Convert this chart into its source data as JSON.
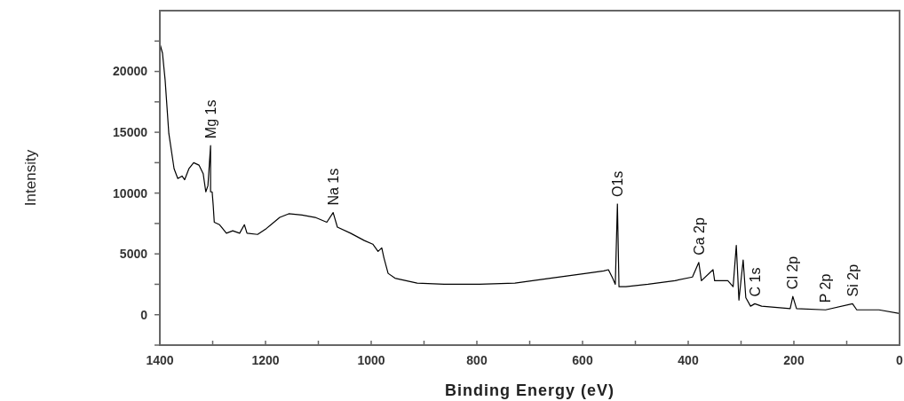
{
  "chart_data": {
    "type": "line",
    "xlabel": "Binding Energy (eV)",
    "ylabel": "Intensity",
    "xlim": [
      1400,
      0
    ],
    "ylim": [
      -2500,
      25000
    ],
    "xticks": [
      1400,
      {
        "value": 1300,
        "label": null
      },
      1200,
      {
        "value": 1100,
        "label": null
      },
      1000,
      {
        "value": 900,
        "label": null
      },
      800,
      {
        "value": 700,
        "label": null
      },
      600,
      {
        "value": 500,
        "label": null
      },
      400,
      {
        "value": 300,
        "label": null
      },
      200,
      {
        "value": 100,
        "label": null
      },
      0
    ],
    "yticks": [
      {
        "value": -2500,
        "label": null
      },
      0,
      {
        "value": 2500,
        "label": null
      },
      5000,
      {
        "value": 7500,
        "label": null
      },
      10000,
      {
        "value": 12500,
        "label": null
      },
      15000,
      {
        "value": 17500,
        "label": null
      },
      20000,
      {
        "value": 22500,
        "label": null
      }
    ],
    "grid": false,
    "marker": "none",
    "line_style": "solid",
    "series": [
      {
        "color": "#000000",
        "x": [
          1400,
          1395,
          1390,
          1383,
          1373,
          1366,
          1358,
          1353,
          1345,
          1336,
          1326,
          1318,
          1313,
          1309,
          1304,
          1304,
          1301,
          1299,
          1297,
          1287,
          1274,
          1262,
          1249,
          1240,
          1235,
          1215,
          1198,
          1173,
          1156,
          1131,
          1106,
          1084,
          1072,
          1064,
          1039,
          1013,
          997,
          987,
          980,
          976,
          968,
          955,
          913,
          862,
          795,
          728,
          661,
          593,
          560,
          551,
          543,
          538,
          534,
          531,
          518,
          476,
          425,
          392,
          380,
          375,
          353,
          350,
          325,
          315,
          309,
          304,
          296,
          291,
          282,
          274,
          261,
          207,
          202,
          195,
          140,
          89,
          81,
          39,
          0
        ],
        "values": [
          22300,
          21500,
          19300,
          14900,
          12000,
          11200,
          11400,
          11100,
          12000,
          12500,
          12300,
          11600,
          10100,
          10600,
          13900,
          10100,
          10100,
          9000,
          7600,
          7400,
          6700,
          6900,
          6700,
          7400,
          6700,
          6600,
          7100,
          8000,
          8300,
          8200,
          8000,
          7600,
          8400,
          7200,
          6700,
          6100,
          5800,
          5200,
          5500,
          4700,
          3400,
          3000,
          2600,
          2500,
          2500,
          2600,
          3000,
          3400,
          3600,
          3700,
          3000,
          2500,
          9100,
          2300,
          2300,
          2500,
          2800,
          3100,
          4300,
          2800,
          3700,
          2800,
          2800,
          2300,
          5700,
          1200,
          4500,
          1400,
          700,
          900,
          700,
          500,
          1500,
          500,
          400,
          900,
          400,
          400,
          100
        ]
      }
    ],
    "annotations": [
      {
        "text": "Mg 1s",
        "x": 1304,
        "y": 13900
      },
      {
        "text": "Na 1s",
        "x": 1072,
        "y": 8400
      },
      {
        "text": "O1s",
        "x": 534,
        "y": 9100
      },
      {
        "text": "Ca 2p",
        "x": 380,
        "y": 4300
      },
      {
        "text": "C 1s",
        "x": 274,
        "y": 900
      },
      {
        "text": "Cl 2p",
        "x": 202,
        "y": 1500
      },
      {
        "text": "P 2p",
        "x": 140,
        "y": 400
      },
      {
        "text": "Si 2p",
        "x": 89,
        "y": 900
      }
    ]
  }
}
